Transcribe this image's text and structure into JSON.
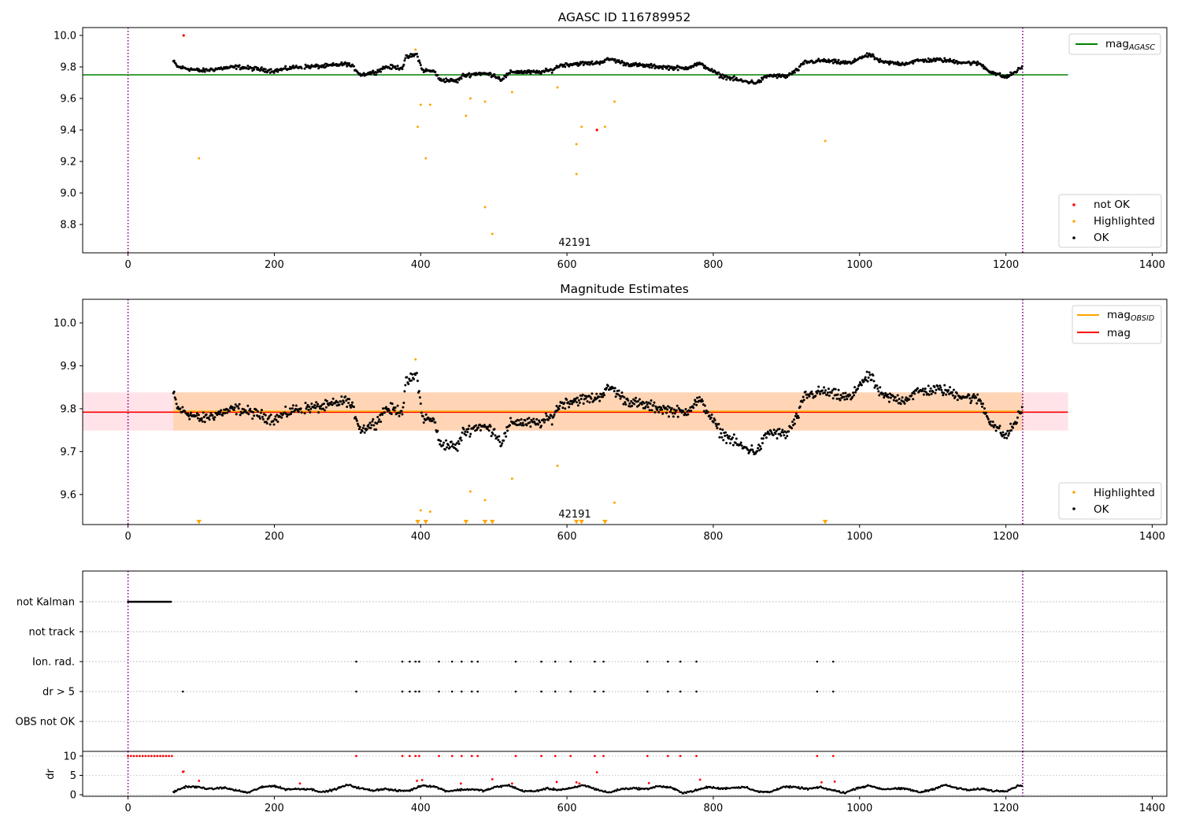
{
  "chart_data": [
    {
      "type": "scatter",
      "title": "AGASC ID 116789952",
      "xlim": [
        -62,
        1420
      ],
      "ylim": [
        8.62,
        10.05
      ],
      "xticks": [
        0,
        200,
        400,
        600,
        800,
        1000,
        1200,
        1400
      ],
      "yticks": [
        8.8,
        9.0,
        9.2,
        9.4,
        9.6,
        9.8,
        10.0
      ],
      "ytick_labels": [
        "8.8",
        "9.0",
        "9.2",
        "9.4",
        "9.6",
        "9.8",
        "10.0"
      ],
      "vlines": [
        0,
        1223
      ],
      "hline": {
        "name": "mag_AGASC",
        "value": 9.75,
        "x_end": 1285,
        "color": "#008000"
      },
      "obsid_label": {
        "text": "42191",
        "x": 610,
        "y": 8.66
      },
      "legend_lines": [
        {
          "label": "mag",
          "subscript": "AGASC",
          "color": "#008000"
        }
      ],
      "legend_points": [
        {
          "label": "not OK",
          "color": "#ff0000"
        },
        {
          "label": "Highlighted",
          "color": "#ffa500"
        },
        {
          "label": "OK",
          "color": "#000000"
        }
      ],
      "series": [
        {
          "name": "OK",
          "color": "#000000",
          "x_start": 62,
          "x_end": 1223,
          "model": "mag"
        },
        {
          "name": "Highlighted",
          "color": "#ffa500",
          "points": [
            [
              97,
              9.22
            ],
            [
              393,
              9.91
            ],
            [
              396,
              9.42
            ],
            [
              400,
              9.56
            ],
            [
              407,
              9.22
            ],
            [
              413,
              9.56
            ],
            [
              462,
              9.49
            ],
            [
              468,
              9.6
            ],
            [
              488,
              8.91
            ],
            [
              488,
              9.58
            ],
            [
              498,
              8.74
            ],
            [
              525,
              9.64
            ],
            [
              587,
              9.67
            ],
            [
              613,
              9.31
            ],
            [
              613,
              9.12
            ],
            [
              620,
              9.42
            ],
            [
              652,
              9.42
            ],
            [
              665,
              9.58
            ],
            [
              953,
              9.33
            ]
          ]
        },
        {
          "name": "not OK",
          "color": "#ff0000",
          "points": [
            [
              76,
              10.0
            ],
            [
              641,
              9.4
            ]
          ]
        }
      ]
    },
    {
      "type": "scatter",
      "title": "Magnitude Estimates",
      "xlim": [
        -62,
        1420
      ],
      "ylim": [
        9.53,
        10.055
      ],
      "xticks": [
        0,
        200,
        400,
        600,
        800,
        1000,
        1200,
        1400
      ],
      "yticks": [
        9.6,
        9.7,
        9.8,
        9.9,
        10.0
      ],
      "ytick_labels": [
        "9.6",
        "9.7",
        "9.8",
        "9.9",
        "10.0"
      ],
      "vlines": [
        0,
        1223
      ],
      "mag": 9.792,
      "mag_obsid": 9.794,
      "band": [
        9.749,
        9.838
      ],
      "obsid_label": {
        "text": "42191",
        "x": 610,
        "y": 9.544
      },
      "legend_lines": [
        {
          "label": "mag",
          "subscript": "OBSID",
          "color": "#ffa500"
        },
        {
          "label": "mag",
          "subscript": "",
          "color": "#ff0000"
        }
      ],
      "legend_points": [
        {
          "label": "Highlighted",
          "color": "#ffa500"
        },
        {
          "label": "OK",
          "color": "#000000"
        }
      ],
      "series": [
        {
          "name": "OK",
          "color": "#000000",
          "x_start": 62,
          "x_end": 1223,
          "model": "mag"
        },
        {
          "name": "Highlighted",
          "color": "#ffa500",
          "points": [
            [
              393,
              9.915
            ],
            [
              400,
              9.563
            ],
            [
              413,
              9.56
            ],
            [
              468,
              9.607
            ],
            [
              488,
              9.587
            ],
            [
              525,
              9.637
            ],
            [
              587,
              9.667
            ],
            [
              665,
              9.581
            ]
          ]
        },
        {
          "name": "Highlighted (off-scale)",
          "color": "#ffa500",
          "marker": "triangle-down",
          "x": [
            97,
            396,
            407,
            462,
            488,
            498,
            613,
            620,
            652,
            953
          ]
        }
      ]
    },
    {
      "type": "scatter",
      "title": "",
      "xlim": [
        -62,
        1420
      ],
      "xticks": [
        0,
        200,
        400,
        600,
        800,
        1000,
        1200,
        1400
      ],
      "vlines": [
        0,
        1223
      ],
      "categories": [
        "not Kalman",
        "not track",
        "Ion. rad.",
        "dr > 5",
        "OBS not OK"
      ],
      "flags": {
        "not Kalman": {
          "x_start": 0,
          "x_end": 60
        },
        "not track": {
          "x": []
        },
        "Ion. rad.": {
          "x": [
            312,
            375,
            385,
            393,
            398,
            425,
            443,
            456,
            470,
            478,
            530,
            565,
            584,
            605,
            638,
            650,
            710,
            738,
            755,
            777,
            942,
            964
          ]
        },
        "dr > 5": {
          "x": [
            75,
            312,
            375,
            385,
            393,
            398,
            425,
            443,
            456,
            470,
            478,
            530,
            565,
            584,
            605,
            638,
            650,
            710,
            738,
            755,
            777,
            942,
            964
          ]
        },
        "OBS not OK": {
          "x": []
        }
      }
    },
    {
      "type": "scatter",
      "title": "",
      "ylabel": "dr",
      "xlim": [
        -62,
        1420
      ],
      "ylim": [
        -0.4,
        11.2
      ],
      "xticks": [
        0,
        200,
        400,
        600,
        800,
        1000,
        1200,
        1400
      ],
      "xtick_labels": [
        "0",
        "200",
        "400",
        "600",
        "800",
        "1000",
        "1200",
        "1400"
      ],
      "yticks": [
        0,
        5,
        10
      ],
      "ytick_labels": [
        "0",
        "5",
        "10"
      ],
      "vlines": [
        0,
        1223
      ],
      "series": [
        {
          "name": "dr (OK)",
          "color": "#000000",
          "x_start": 62,
          "x_end": 1223,
          "model": "dr"
        },
        {
          "name": "dr (not OK, clipped at 10)",
          "color": "#ff0000",
          "x": [
            0,
            4,
            8,
            12,
            16,
            20,
            24,
            28,
            32,
            36,
            40,
            44,
            48,
            52,
            56,
            60,
            312,
            375,
            385,
            393,
            398,
            425,
            443,
            456,
            470,
            478,
            530,
            565,
            584,
            605,
            638,
            650,
            710,
            738,
            755,
            777,
            942,
            964
          ],
          "y": 10
        },
        {
          "name": "dr (not OK)",
          "color": "#ff0000",
          "points": [
            [
              75,
              5.9
            ],
            [
              76,
              6.0
            ],
            [
              97,
              3.6
            ],
            [
              235,
              2.9
            ],
            [
              395,
              3.6
            ],
            [
              402,
              3.8
            ],
            [
              455,
              2.9
            ],
            [
              498,
              4.0
            ],
            [
              525,
              2.9
            ],
            [
              586,
              3.3
            ],
            [
              613,
              3.2
            ],
            [
              617,
              2.9
            ],
            [
              641,
              5.8
            ],
            [
              712,
              3.0
            ],
            [
              782,
              3.9
            ],
            [
              948,
              3.2
            ],
            [
              966,
              3.4
            ]
          ]
        }
      ]
    }
  ]
}
